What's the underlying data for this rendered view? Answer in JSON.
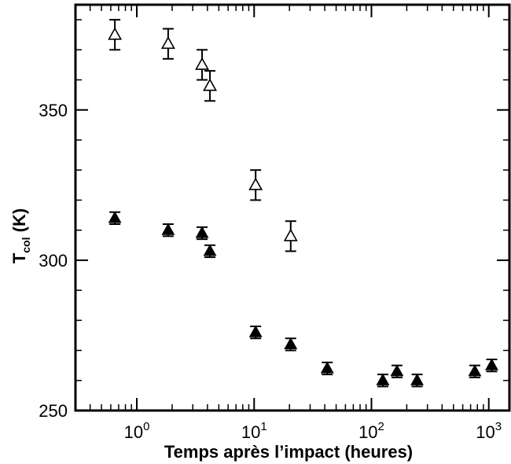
{
  "chart_data": {
    "type": "scatter",
    "title": "",
    "xlabel": "Temps après l’impact (heures)",
    "ylabel": "T",
    "ylabel_sub": "col",
    "ylabel_unit": " (K)",
    "xscale": "log",
    "xlim": [
      0.3,
      1500
    ],
    "ylim": [
      250,
      385
    ],
    "grid": false,
    "legend": "none",
    "x_ticks": [
      {
        "value": 1,
        "base": "10",
        "exp": "0"
      },
      {
        "value": 10,
        "base": "10",
        "exp": "1"
      },
      {
        "value": 100,
        "base": "10",
        "exp": "2"
      },
      {
        "value": 1000,
        "base": "10",
        "exp": "3"
      }
    ],
    "y_ticks": [
      {
        "value": 250,
        "label": "250"
      },
      {
        "value": 300,
        "label": "300"
      },
      {
        "value": 350,
        "label": "350"
      }
    ],
    "series": [
      {
        "marker": "open-triangle",
        "color": "#000000",
        "points": [
          {
            "x": 0.65,
            "y": 375,
            "err": 5
          },
          {
            "x": 1.85,
            "y": 372,
            "err": 5
          },
          {
            "x": 3.6,
            "y": 365,
            "err": 5
          },
          {
            "x": 4.2,
            "y": 358,
            "err": 5
          },
          {
            "x": 10.3,
            "y": 325,
            "err": 5
          },
          {
            "x": 20.5,
            "y": 308,
            "err": 5
          }
        ]
      },
      {
        "marker": "filled-triangle",
        "color": "#000000",
        "points": [
          {
            "x": 0.65,
            "y": 314,
            "err": 2
          },
          {
            "x": 1.85,
            "y": 310,
            "err": 2
          },
          {
            "x": 3.6,
            "y": 309,
            "err": 2
          },
          {
            "x": 4.2,
            "y": 303,
            "err": 2
          },
          {
            "x": 10.3,
            "y": 276,
            "err": 2
          },
          {
            "x": 20.5,
            "y": 272,
            "err": 2
          },
          {
            "x": 42,
            "y": 264,
            "err": 2
          },
          {
            "x": 125,
            "y": 260,
            "err": 2
          },
          {
            "x": 165,
            "y": 263,
            "err": 2
          },
          {
            "x": 245,
            "y": 260,
            "err": 2
          },
          {
            "x": 760,
            "y": 263,
            "err": 2
          },
          {
            "x": 1060,
            "y": 265,
            "err": 2
          }
        ]
      }
    ]
  }
}
